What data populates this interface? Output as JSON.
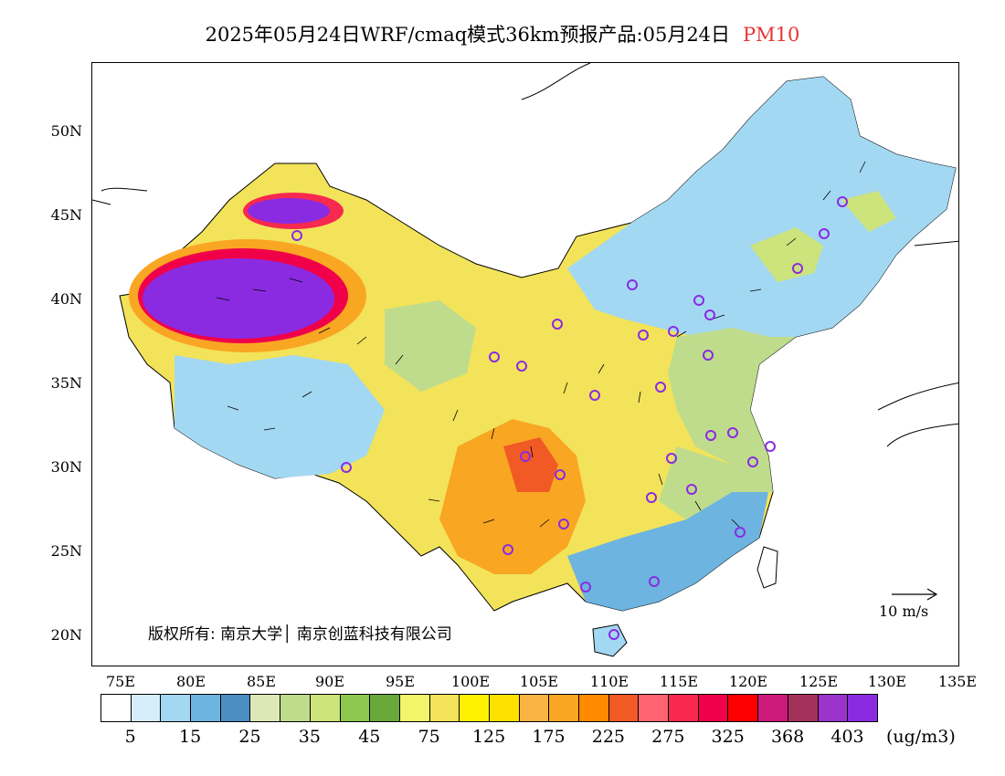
{
  "title": {
    "main": "2025年05月24日WRF/cmaq模式36km预报产品:05月24日",
    "pollutant": "PM10",
    "pollutant_color": "#e83535"
  },
  "axes": {
    "lat_ticks": [
      "50N",
      "45N",
      "40N",
      "35N",
      "30N",
      "25N",
      "20N"
    ],
    "lon_ticks": [
      "75E",
      "80E",
      "85E",
      "90E",
      "95E",
      "100E",
      "105E",
      "110E",
      "115E",
      "120E",
      "125E",
      "130E",
      "135E"
    ]
  },
  "copyright": "版权所有: 南京大学│ 南京创蓝科技有限公司",
  "wind_reference": "10 m/s",
  "colorbar": {
    "colors": [
      "#ffffff",
      "#d6eefa",
      "#a3d8f2",
      "#6db4e0",
      "#4a8ec4",
      "#dde8b8",
      "#bfdc8c",
      "#cde37b",
      "#8fc84e",
      "#6aa83a",
      "#f2f56a",
      "#f2e35a",
      "#fff200",
      "#ffe100",
      "#f9b444",
      "#f9a623",
      "#ff8a00",
      "#f15a24",
      "#ff6470",
      "#f7294f",
      "#f1004a",
      "#ff0000",
      "#cc1a7a",
      "#a3325a",
      "#9933cc",
      "#8a2be2"
    ],
    "labels": [
      "5",
      "15",
      "25",
      "35",
      "45",
      "75",
      "125",
      "175",
      "225",
      "275",
      "325",
      "368",
      "403"
    ],
    "unit": "(ug/m3)"
  }
}
